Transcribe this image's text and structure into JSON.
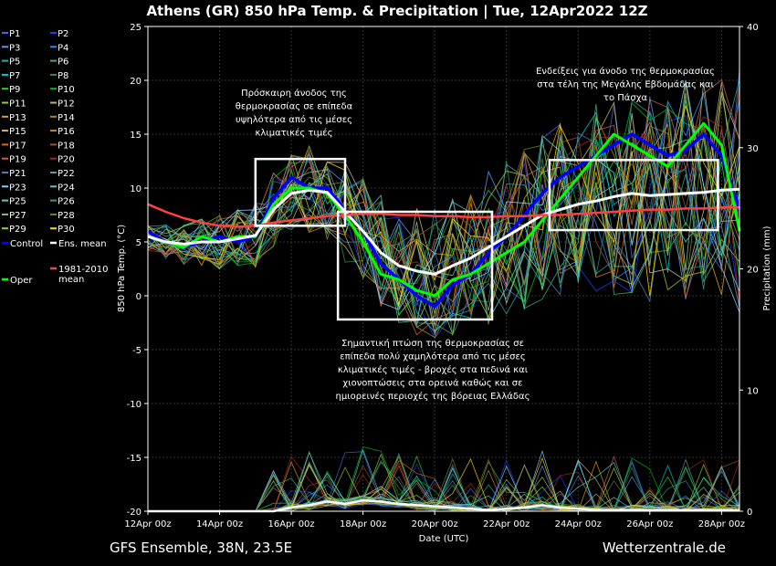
{
  "chart_data": {
    "type": "line",
    "title": "Athens  (GR)  850 hPa Temp. & Precipitation | Tue, 12Apr2022 12Z",
    "footer_left": "GFS Ensemble, 38N, 23.5E",
    "footer_right": "Wetterzentrale.de",
    "xlabel": "Date (UTC)",
    "ylabel_left": "850 hPa Temp. (°C)",
    "ylabel_right": "Precipitation (mm)",
    "ylim_left": [
      -20,
      25
    ],
    "ylim_right": [
      0,
      40
    ],
    "xlim_days": [
      0,
      16.5
    ],
    "grid": true,
    "x_ticks": [
      "12Apr 00z",
      "14Apr 00z",
      "16Apr 00z",
      "18Apr 00z",
      "20Apr 00z",
      "22Apr 00z",
      "24Apr 00z",
      "26Apr 00z",
      "28Apr 00z"
    ],
    "y_ticks_left": [
      "25",
      "20",
      "15",
      "10",
      "5",
      "0",
      "-5",
      "-10",
      "-15",
      "-20"
    ],
    "y_ticks_right": [
      "40",
      "30",
      "20",
      "10",
      "0"
    ],
    "legend": [
      {
        "name": "P1",
        "color": "#4169e1"
      },
      {
        "name": "P2",
        "color": "#1e3cff"
      },
      {
        "name": "P3",
        "color": "#6495ed"
      },
      {
        "name": "P4",
        "color": "#1e90ff"
      },
      {
        "name": "P5",
        "color": "#20b2aa"
      },
      {
        "name": "P6",
        "color": "#3cb371"
      },
      {
        "name": "P7",
        "color": "#00ced1"
      },
      {
        "name": "P8",
        "color": "#2e8b57"
      },
      {
        "name": "P9",
        "color": "#32cd32"
      },
      {
        "name": "P10",
        "color": "#00c000"
      },
      {
        "name": "P11",
        "color": "#9acd32"
      },
      {
        "name": "P12",
        "color": "#bdb76b"
      },
      {
        "name": "P13",
        "color": "#daa520"
      },
      {
        "name": "P14",
        "color": "#b8860b"
      },
      {
        "name": "P15",
        "color": "#d2b48c"
      },
      {
        "name": "P16",
        "color": "#cd853f"
      },
      {
        "name": "P17",
        "color": "#d2691e"
      },
      {
        "name": "P18",
        "color": "#a0522d"
      },
      {
        "name": "P19",
        "color": "#cd5c5c"
      },
      {
        "name": "P20",
        "color": "#b22222"
      },
      {
        "name": "P21",
        "color": "#4682b4"
      },
      {
        "name": "P22",
        "color": "#5f9ea0"
      },
      {
        "name": "P23",
        "color": "#87cefa"
      },
      {
        "name": "P24",
        "color": "#48d1cc"
      },
      {
        "name": "P25",
        "color": "#66cdaa"
      },
      {
        "name": "P26",
        "color": "#2aa198"
      },
      {
        "name": "P27",
        "color": "#8fbc8f"
      },
      {
        "name": "P28",
        "color": "#6b8e23"
      },
      {
        "name": "P29",
        "color": "#9acd32"
      },
      {
        "name": "P30",
        "color": "#ffd700"
      },
      {
        "name": "Control",
        "color": "#0000ff"
      },
      {
        "name": "Ens. mean",
        "color": "#ffffff"
      },
      {
        "name": "Oper",
        "color": "#00ff00"
      },
      {
        "name": "1981-2010 mean",
        "color": "#ff4040"
      }
    ],
    "days": [
      0,
      0.5,
      1,
      1.5,
      2,
      2.5,
      3,
      3.5,
      4,
      4.5,
      5,
      5.5,
      6,
      6.5,
      7,
      7.5,
      8,
      8.5,
      9,
      9.5,
      10,
      10.5,
      11,
      11.5,
      12,
      12.5,
      13,
      13.5,
      14,
      14.5,
      15,
      15.5,
      16,
      16.5
    ],
    "series": [
      {
        "name": "Control",
        "color": "#0000ff",
        "values": [
          6,
          5,
          4.5,
          5,
          5.5,
          5,
          5.5,
          9,
          11,
          10,
          10,
          8,
          6,
          3,
          1.5,
          0,
          -1,
          1,
          2,
          4,
          5.5,
          7.5,
          9.5,
          11,
          12,
          13,
          14,
          15,
          14,
          13,
          13.5,
          15,
          13,
          8
        ]
      },
      {
        "name": "Oper",
        "color": "#00ff00",
        "values": [
          5.5,
          5,
          4.5,
          5.5,
          5,
          5.5,
          5.5,
          8.5,
          10,
          10,
          9.5,
          7.5,
          5,
          2,
          1.5,
          0.5,
          0,
          1.5,
          2,
          3,
          4,
          5,
          7,
          9,
          11,
          13,
          15,
          14,
          13,
          12,
          14,
          16,
          14,
          6
        ]
      },
      {
        "name": "Ens. mean",
        "color": "#ffffff",
        "values": [
          5.5,
          5,
          4.8,
          5,
          5,
          5.3,
          5.6,
          8,
          9.5,
          9.8,
          9.6,
          7.8,
          6,
          4,
          2.8,
          2.3,
          2,
          2.8,
          3.5,
          4.5,
          5.5,
          6.5,
          7.5,
          8,
          8.5,
          8.8,
          9.2,
          9.5,
          9.3,
          9.4,
          9.5,
          9.6,
          9.8,
          9.9
        ]
      },
      {
        "name": "1981-2010 mean",
        "color": "#ff4040",
        "values": [
          8.5,
          7.8,
          7.2,
          6.8,
          6.5,
          6.4,
          6.5,
          6.8,
          7,
          7.2,
          7.4,
          7.5,
          7.6,
          7.6,
          7.5,
          7.5,
          7.4,
          7.4,
          7.3,
          7.3,
          7.4,
          7.4,
          7.5,
          7.5,
          7.6,
          7.7,
          7.8,
          7.9,
          8,
          8,
          8.1,
          8.1,
          8.2,
          8.2
        ]
      }
    ],
    "precip_mean_mm": [
      0,
      0,
      0,
      0,
      0,
      0,
      0,
      0,
      0.3,
      0.5,
      0.8,
      0.6,
      0.9,
      0.8,
      0.6,
      0.5,
      0.4,
      0.3,
      0.2,
      0.1,
      0.2,
      0.3,
      0.5,
      0.3,
      0.2,
      0.1,
      0.1,
      0.1,
      0.1,
      0.1,
      0.1,
      0.1,
      0.1,
      0.1
    ],
    "annotations": [
      {
        "id": "a1",
        "lines": [
          "Πρόσκαιρη άνοδος της",
          "θερμοκρασίας σε επίπεδα",
          "υψηλότερα από τις μέσες",
          "κλιματικές τιμές"
        ]
      },
      {
        "id": "a2",
        "lines": [
          "Σημαντική πτώση της θερμοκρασίας σε",
          "επίπεδα πολύ χαμηλότερα από τις μέσες",
          "κλιματικές τιμές - βροχές στα πεδινά και",
          "χιονοπτώσεις στα ορεινά καθώς και σε",
          "ημιορεινές περιοχές της βόρειας Ελλάδας"
        ]
      },
      {
        "id": "a3",
        "lines": [
          "Ενδείξεις για άνοδο της θερμοκρασίας",
          "στα τέλη της Μεγάλης Εβδομάδας και",
          "το Πάσχα"
        ]
      }
    ]
  }
}
